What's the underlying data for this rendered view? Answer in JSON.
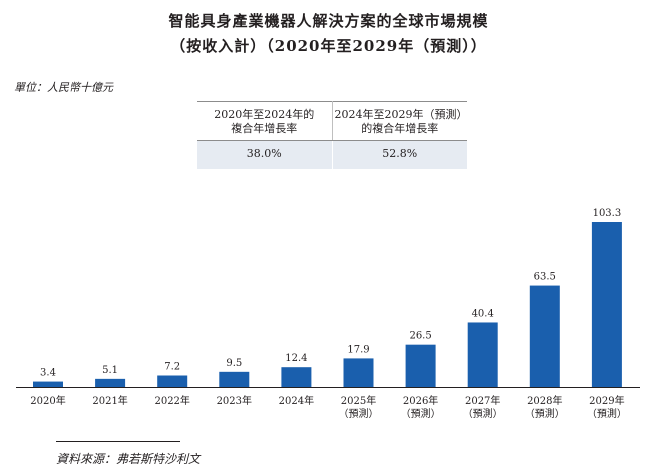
{
  "title_line1": "智能具身產業機器人解決方案的全球市場規模",
  "title_line2": "（按收入計）（2020年至2029年（預測））",
  "unit": "單位：人民幣十億元",
  "cagr_table": {
    "headers": [
      [
        "2020年至2024年的",
        "複合年增長率"
      ],
      [
        "2024年至2029年（預測）",
        "的複合年增長率"
      ]
    ],
    "values": [
      "38.0%",
      "52.8%"
    ]
  },
  "source": "資料來源：弗若斯特沙利文",
  "chart_data": {
    "type": "bar",
    "categories": [
      [
        "2020年"
      ],
      [
        "2021年"
      ],
      [
        "2022年"
      ],
      [
        "2023年"
      ],
      [
        "2024年"
      ],
      [
        "2025年",
        "（預測）"
      ],
      [
        "2026年",
        "（預測）"
      ],
      [
        "2027年",
        "（預測）"
      ],
      [
        "2028年",
        "（預測）"
      ],
      [
        "2029年",
        "（預測）"
      ]
    ],
    "values": [
      3.4,
      5.1,
      7.2,
      9.5,
      12.4,
      17.9,
      26.5,
      40.4,
      63.5,
      103.3
    ],
    "value_labels": [
      "3.4",
      "5.1",
      "7.2",
      "9.5",
      "12.4",
      "17.9",
      "26.5",
      "40.4",
      "63.5",
      "103.3"
    ],
    "bar_color": "#1a5fad",
    "ylim": [
      0,
      103.3
    ]
  }
}
